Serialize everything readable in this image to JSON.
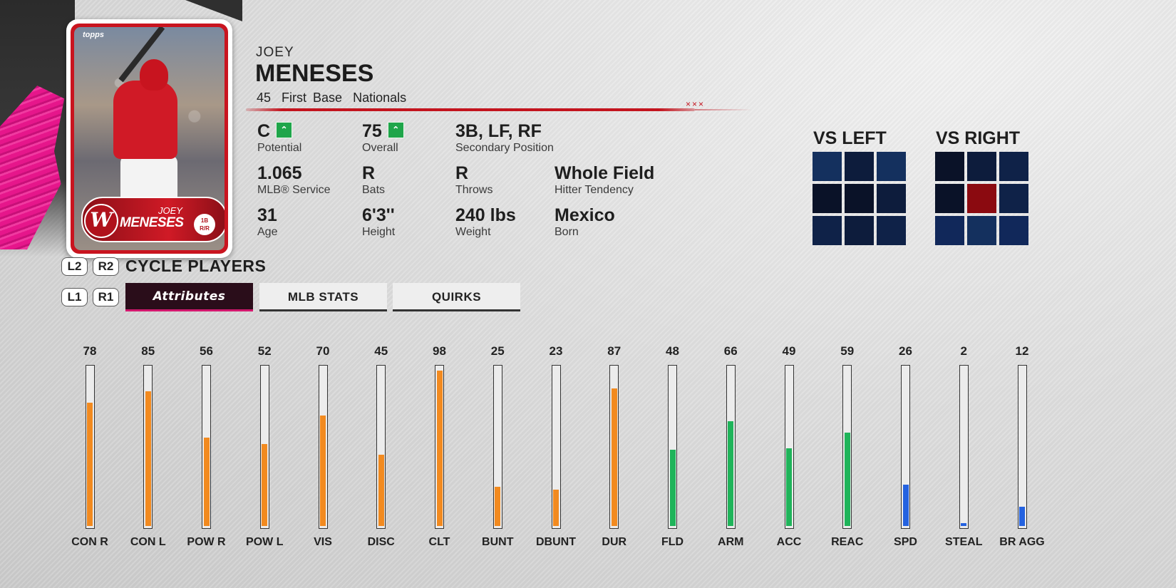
{
  "card": {
    "brand": "topps",
    "first_name": "JOEY",
    "last_name": "MENESES",
    "position": "1B",
    "bats_throws": "R/R",
    "team_logo": "W"
  },
  "player": {
    "first_name": "JOEY",
    "last_name": "MENESES",
    "number": "45",
    "position": "First Base",
    "team": "Nationals"
  },
  "info": {
    "potential": {
      "value": "C",
      "label": "Potential",
      "icon": "up-arrow-icon"
    },
    "overall": {
      "value": "75",
      "label": "Overall",
      "icon": "up-arrow-icon"
    },
    "secondary": {
      "value": "3B, LF, RF",
      "label": "Secondary Position"
    },
    "service": {
      "value": "1.065",
      "label": "MLB® Service"
    },
    "bats": {
      "value": "R",
      "label": "Bats"
    },
    "throws": {
      "value": "R",
      "label": "Throws"
    },
    "tendency": {
      "value": "Whole Field",
      "label": "Hitter Tendency"
    },
    "age": {
      "value": "31",
      "label": "Age"
    },
    "height": {
      "value": "6'3''",
      "label": "Height"
    },
    "weight": {
      "value": "240 lbs",
      "label": "Weight"
    },
    "born": {
      "value": "Mexico",
      "label": "Born"
    }
  },
  "zones": {
    "vs_left": {
      "title": "VS LEFT",
      "colors": [
        "#14305e",
        "#0d1c3c",
        "#14305e",
        "#0a1228",
        "#0a1228",
        "#0d1c3c",
        "#0f2248",
        "#0d1c3c",
        "#0f2248"
      ]
    },
    "vs_right": {
      "title": "VS RIGHT",
      "colors": [
        "#0a1228",
        "#0d1c3c",
        "#0f2248",
        "#0a1228",
        "#8b0a10",
        "#0f2248",
        "#11285a",
        "#14305e",
        "#11285a"
      ]
    }
  },
  "controls": {
    "l2": "L2",
    "r2": "R2",
    "l1": "L1",
    "r1": "R1",
    "cycle_label": "CYCLE PLAYERS"
  },
  "tabs": {
    "attributes": "Attributes",
    "mlb_stats": "MLB STATS",
    "quirks": "QUIRKS"
  },
  "colors": {
    "orange": "#f28a1f",
    "green": "#1fb45a",
    "blue": "#2462e0"
  },
  "attributes": [
    {
      "label": "CON R",
      "value": 78,
      "color": "orange"
    },
    {
      "label": "CON L",
      "value": 85,
      "color": "orange"
    },
    {
      "label": "POW R",
      "value": 56,
      "color": "orange"
    },
    {
      "label": "POW L",
      "value": 52,
      "color": "orange"
    },
    {
      "label": "VIS",
      "value": 70,
      "color": "orange"
    },
    {
      "label": "DISC",
      "value": 45,
      "color": "orange"
    },
    {
      "label": "CLT",
      "value": 98,
      "color": "orange"
    },
    {
      "label": "BUNT",
      "value": 25,
      "color": "orange"
    },
    {
      "label": "DBUNT",
      "value": 23,
      "color": "orange"
    },
    {
      "label": "DUR",
      "value": 87,
      "color": "orange"
    },
    {
      "label": "FLD",
      "value": 48,
      "color": "green"
    },
    {
      "label": "ARM",
      "value": 66,
      "color": "green"
    },
    {
      "label": "ACC",
      "value": 49,
      "color": "green"
    },
    {
      "label": "REAC",
      "value": 59,
      "color": "green"
    },
    {
      "label": "SPD",
      "value": 26,
      "color": "blue"
    },
    {
      "label": "STEAL",
      "value": 2,
      "color": "blue"
    },
    {
      "label": "BR AGG",
      "value": 12,
      "color": "blue"
    }
  ]
}
